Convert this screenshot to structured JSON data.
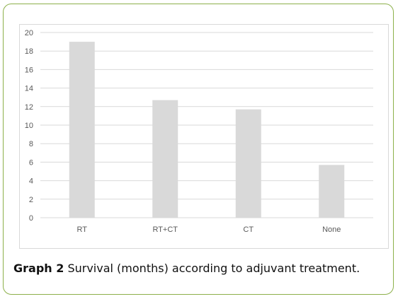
{
  "caption": {
    "lead": "Graph 2",
    "text": " Survival (months) according to adjuvant treatment."
  },
  "colors": {
    "bar": "#d9d9d9",
    "grid": "#d9d9d9",
    "tick_text": "#595959",
    "frame_border": "#8cb04a"
  },
  "chart_data": {
    "type": "bar",
    "categories": [
      "RT",
      "RT+CT",
      "CT",
      "None"
    ],
    "values": [
      19,
      12.7,
      11.7,
      5.7
    ],
    "ylim": [
      0,
      20
    ],
    "yticks": [
      0,
      2,
      4,
      6,
      8,
      10,
      12,
      14,
      16,
      18,
      20
    ],
    "grid": true,
    "legend": "none"
  }
}
